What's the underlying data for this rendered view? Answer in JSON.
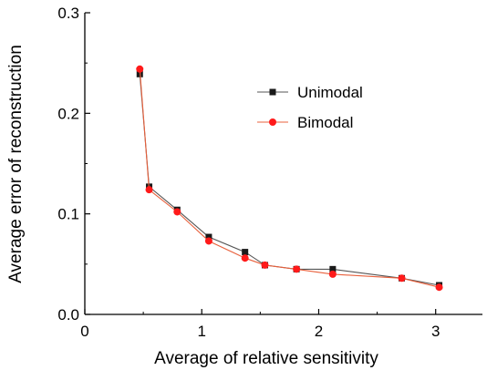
{
  "chart_data": {
    "type": "line",
    "title": "",
    "xlabel": "Average of relative sensitivity",
    "ylabel": "Average error of reconstruction",
    "xlim": [
      0,
      3.4
    ],
    "ylim": [
      0,
      0.3
    ],
    "xticks": [
      0,
      1,
      2,
      3
    ],
    "xtick_labels": [
      "0",
      "1",
      "2",
      "3"
    ],
    "yticks": [
      0.0,
      0.1,
      0.2,
      0.3
    ],
    "ytick_labels": [
      "0.0",
      "0.1",
      "0.2",
      "0.3"
    ],
    "grid": false,
    "legend_position": "upper-right",
    "series": [
      {
        "name": "Unimodal",
        "marker": "square",
        "marker_color": "#1a1a1a",
        "line_color": "#555555",
        "x": [
          0.47,
          0.55,
          0.79,
          1.06,
          1.37,
          1.54,
          1.81,
          2.12,
          2.71,
          3.03
        ],
        "y": [
          0.239,
          0.127,
          0.104,
          0.077,
          0.062,
          0.049,
          0.045,
          0.045,
          0.036,
          0.029
        ]
      },
      {
        "name": "Bimodal",
        "marker": "circle",
        "marker_color": "#ff1a1a",
        "line_color": "#e8603c",
        "x": [
          0.47,
          0.55,
          0.79,
          1.06,
          1.37,
          1.54,
          1.81,
          2.12,
          2.71,
          3.03
        ],
        "y": [
          0.244,
          0.124,
          0.102,
          0.073,
          0.056,
          0.049,
          0.045,
          0.04,
          0.036,
          0.027
        ]
      }
    ]
  }
}
